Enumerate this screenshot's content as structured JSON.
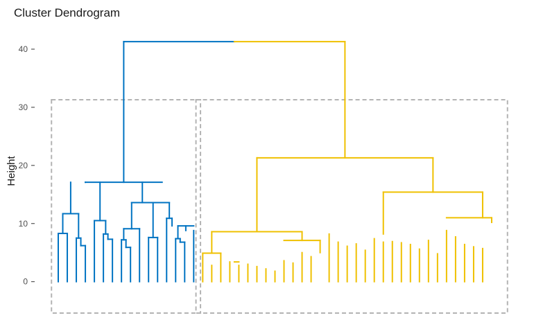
{
  "chart_data": {
    "type": "dendrogram",
    "title": "Cluster Dendrogram",
    "xlabel": "",
    "ylabel": "Height",
    "ylim": [
      -5.4,
      42.5
    ],
    "y_ticks": [
      0,
      10,
      20,
      30,
      40
    ],
    "grid": false,
    "legend": "none",
    "leaf_count": 50,
    "cluster_boxes": [
      {
        "leaves": [
          1,
          16
        ],
        "height_range": [
          -5.4,
          31.3
        ],
        "color": "#b3b3b3"
      },
      {
        "leaves": [
          17,
          50
        ],
        "height_range": [
          -5.4,
          31.3
        ],
        "color": "#b3b3b3"
      }
    ],
    "series": [
      {
        "color": "#0073C2",
        "leaf_range": [
          1,
          16
        ],
        "segments": [
          [
            1,
            0,
            1,
            8.3
          ],
          [
            2,
            0,
            2,
            8.3
          ],
          [
            1,
            8.3,
            2,
            8.3
          ],
          [
            3,
            0,
            3,
            7.5
          ],
          [
            4,
            0,
            4,
            6.2
          ],
          [
            3.5,
            6.2,
            4,
            6.2
          ],
          [
            3.5,
            6.2,
            3.5,
            7.5
          ],
          [
            3,
            7.5,
            3.5,
            7.5
          ],
          [
            1.5,
            8.3,
            1.5,
            11.7
          ],
          [
            3.25,
            7.5,
            3.25,
            11.7
          ],
          [
            1.5,
            11.7,
            3.25,
            11.7
          ],
          [
            5,
            0,
            5,
            10.5
          ],
          [
            6,
            0,
            6,
            8.2
          ],
          [
            7,
            0,
            7,
            7.3
          ],
          [
            6.5,
            7.3,
            7,
            7.3
          ],
          [
            6.5,
            7.3,
            6.5,
            8.2
          ],
          [
            6,
            8.2,
            6.5,
            8.2
          ],
          [
            6.25,
            8.2,
            6.25,
            10.5
          ],
          [
            5,
            10.5,
            6.25,
            10.5
          ],
          [
            2.375,
            11.7,
            2.375,
            17.1
          ],
          [
            5.625,
            10.5,
            5.625,
            17.1
          ],
          [
            8,
            0,
            8,
            7.2
          ],
          [
            9,
            0,
            9,
            5.9
          ],
          [
            8.5,
            5.9,
            9,
            5.9
          ],
          [
            8.5,
            5.9,
            8.5,
            7.2
          ],
          [
            8,
            7.2,
            8.5,
            7.2
          ],
          [
            8.25,
            7.2,
            8.25,
            9.1
          ],
          [
            10,
            0,
            10,
            9.1
          ],
          [
            8.25,
            9.1,
            10,
            9.1
          ],
          [
            11,
            0,
            11,
            7.6
          ],
          [
            12,
            0,
            12,
            7.6
          ],
          [
            11,
            7.6,
            12,
            7.6
          ],
          [
            9.125,
            9.1,
            9.125,
            13.6
          ],
          [
            11.5,
            7.6,
            11.5,
            13.6
          ],
          [
            9.125,
            13.6,
            11.5,
            13.6
          ],
          [
            13,
            0,
            13,
            10.9
          ],
          [
            14,
            0,
            14,
            7.4
          ],
          [
            15,
            0,
            15,
            6.8
          ],
          [
            14.5,
            6.8,
            15,
            6.8
          ],
          [
            14.5,
            6.8,
            14.5,
            7.4
          ],
          [
            14,
            7.4,
            14.5,
            7.4
          ],
          [
            14.25,
            7.4,
            14.25,
            9.6
          ],
          [
            16,
            0,
            16,
            8.8
          ],
          [
            14.25,
            9.6,
            16,
            9.6
          ],
          [
            15.125,
            8.8,
            15.125,
            9.6
          ],
          [
            13.6,
            9.6,
            13.6,
            10.9
          ],
          [
            13,
            10.9,
            13.6,
            10.9
          ],
          [
            10.3125,
            13.6,
            10.3125,
            17.1
          ],
          [
            13.3,
            10.9,
            13.3,
            13.6
          ],
          [
            11.5,
            13.6,
            13.3,
            13.6
          ],
          [
            4,
            17.1,
            12.5,
            17.1
          ],
          [
            4,
            17.1,
            4,
            17.1
          ],
          [
            8.25,
            17.1,
            8.25,
            41.3
          ],
          [
            8.25,
            41.3,
            20.5,
            41.3
          ]
        ]
      },
      {
        "color": "#EFC000",
        "leaf_range": [
          17,
          50
        ],
        "segments": [
          [
            20.5,
            41.3,
            32.75,
            41.3
          ],
          [
            32.75,
            21.3,
            32.75,
            41.3
          ],
          [
            23,
            21.3,
            42.5,
            21.3
          ],
          [
            23,
            8.6,
            23,
            21.3
          ],
          [
            42.5,
            15.4,
            42.5,
            21.3
          ],
          [
            18,
            8.6,
            28,
            8.6
          ],
          [
            18,
            4.9,
            18,
            8.6
          ],
          [
            28,
            7.1,
            28,
            8.6
          ],
          [
            17,
            0,
            17,
            4.9
          ],
          [
            19,
            0,
            19,
            4.9
          ],
          [
            17,
            4.9,
            19,
            4.9
          ],
          [
            18,
            0,
            18,
            2.8
          ],
          [
            20,
            0,
            20,
            3.4
          ],
          [
            21,
            0,
            21,
            2.8
          ],
          [
            20.5,
            3.4,
            21,
            3.4
          ],
          [
            22,
            0,
            22,
            3.0
          ],
          [
            23,
            0,
            23,
            2.6
          ],
          [
            24,
            0,
            24,
            2.2
          ],
          [
            25,
            0,
            25,
            1.8
          ],
          [
            26,
            0,
            26,
            3.6
          ],
          [
            27,
            0,
            27,
            3.2
          ],
          [
            28,
            0,
            28,
            5.0
          ],
          [
            29,
            0,
            29,
            4.3
          ],
          [
            26,
            7.1,
            30,
            7.1
          ],
          [
            30,
            5.0,
            30,
            7.1
          ],
          [
            37,
            15.4,
            48,
            15.4
          ],
          [
            37,
            8.2,
            37,
            15.4
          ],
          [
            48,
            11.0,
            48,
            15.4
          ],
          [
            31,
            0,
            31,
            8.2
          ],
          [
            32,
            0,
            32,
            6.8
          ],
          [
            33,
            0,
            33,
            6.1
          ],
          [
            34,
            0,
            34,
            6.5
          ],
          [
            35,
            0,
            35,
            5.4
          ],
          [
            36,
            0,
            36,
            7.4
          ],
          [
            37,
            0,
            37,
            6.8
          ],
          [
            38,
            0,
            38,
            6.9
          ],
          [
            39,
            0,
            39,
            6.7
          ],
          [
            40,
            0,
            40,
            6.4
          ],
          [
            41,
            0,
            41,
            5.6
          ],
          [
            42,
            0,
            42,
            7.1
          ],
          [
            43,
            0,
            43,
            4.8
          ],
          [
            44,
            0,
            44,
            8.8
          ],
          [
            45,
            0,
            45,
            7.7
          ],
          [
            46,
            0,
            46,
            6.4
          ],
          [
            47,
            0,
            47,
            6.0
          ],
          [
            48,
            0,
            48,
            5.7
          ],
          [
            44,
            11.0,
            49,
            11.0
          ],
          [
            49,
            10.2,
            49,
            11.0
          ]
        ]
      }
    ]
  }
}
